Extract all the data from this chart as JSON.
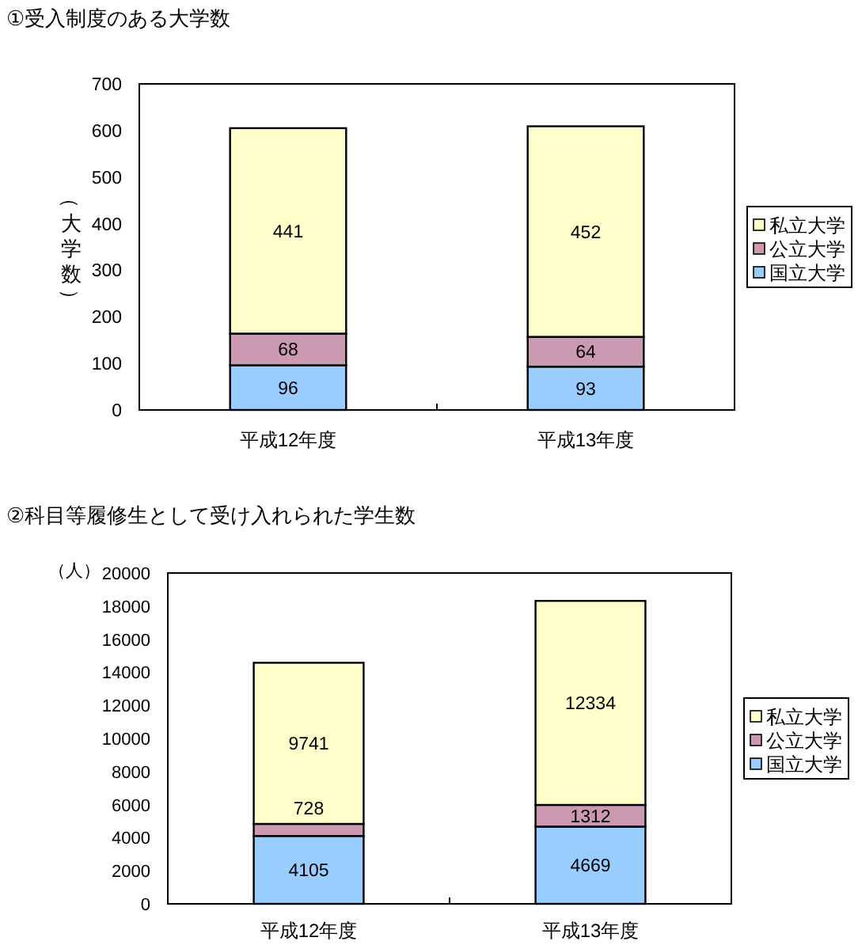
{
  "chart_data": [
    {
      "type": "bar",
      "title": "①受入制度のある大学数",
      "ylabel": "（大学数）",
      "categories": [
        "平成12年度",
        "平成13年度"
      ],
      "stacked": true,
      "series": [
        {
          "name": "国立大学",
          "color": "#99ccff",
          "values": [
            96,
            93
          ]
        },
        {
          "name": "公立大学",
          "color": "#cc99b3",
          "values": [
            68,
            64
          ]
        },
        {
          "name": "私立大学",
          "color": "#ffffcc",
          "values": [
            441,
            452
          ]
        }
      ],
      "ylim": [
        0,
        700
      ],
      "yticks": [
        0,
        100,
        200,
        300,
        400,
        500,
        600,
        700
      ],
      "data_labels": true,
      "legend": "right"
    },
    {
      "type": "bar",
      "title": "②科目等履修生として受け入れられた学生数",
      "ylabel": "（人）",
      "categories": [
        "平成12年度",
        "平成13年度"
      ],
      "stacked": true,
      "series": [
        {
          "name": "国立大学",
          "color": "#99ccff",
          "values": [
            4105,
            4669
          ]
        },
        {
          "name": "公立大学",
          "color": "#cc99b3",
          "values": [
            728,
            1312
          ]
        },
        {
          "name": "私立大学",
          "color": "#ffffcc",
          "values": [
            9741,
            12334
          ]
        }
      ],
      "ylim": [
        0,
        20000
      ],
      "yticks": [
        0,
        2000,
        4000,
        6000,
        8000,
        10000,
        12000,
        14000,
        16000,
        18000,
        20000
      ],
      "data_labels": true,
      "legend": "right"
    }
  ]
}
